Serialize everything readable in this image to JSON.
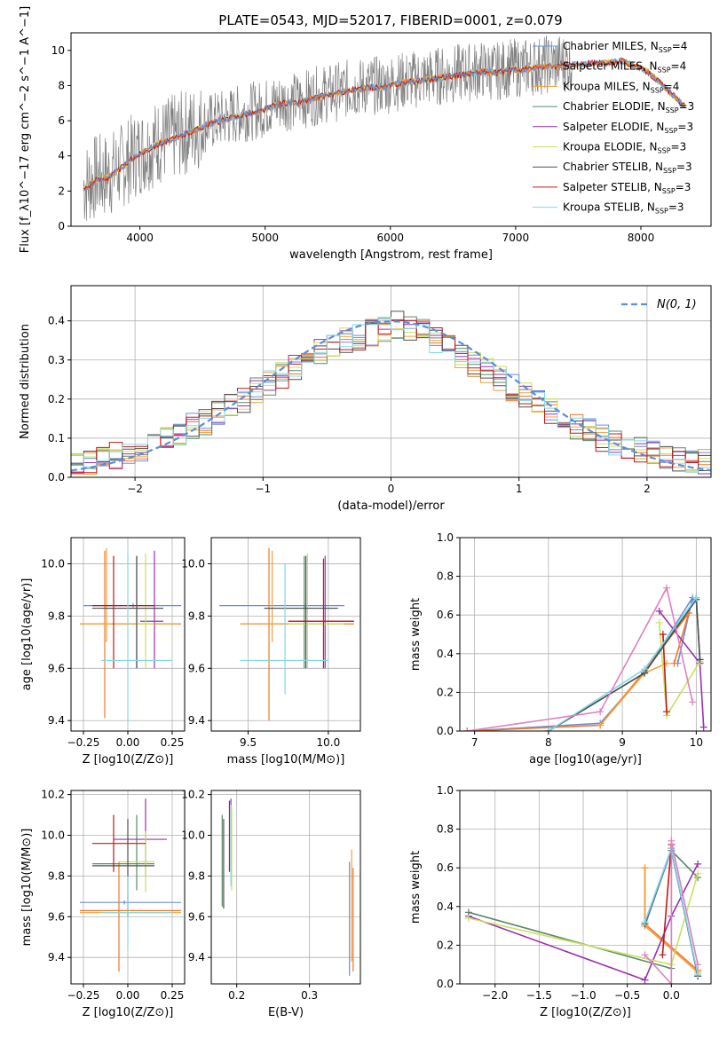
{
  "figure": {
    "title": "PLATE=0543, MJD=52017, FIBERID=0001, z=0.079"
  },
  "series_colors": [
    "#6a8fd8",
    "#f07828",
    "#f0a040",
    "#5a8a6a",
    "#9a30b0",
    "#c8e060",
    "#505050",
    "#c01818",
    "#80d8e8"
  ],
  "normal_curve_color": "#5b8fd8",
  "chart_data": [
    {
      "id": "spectrum",
      "type": "line",
      "xlabel": "wavelength [Angstrom, rest frame]",
      "ylabel": "Flux [f_λ10^−17 erg cm^−2 s^−1 A^−1]",
      "xlim": [
        3450,
        8560
      ],
      "ylim": [
        0,
        11
      ],
      "xticks": [
        4000,
        5000,
        6000,
        7000,
        8000
      ],
      "yticks": [
        0,
        2,
        4,
        6,
        8,
        10
      ],
      "grid": false,
      "legend_position": "top-right",
      "observed": {
        "x": [
          3550,
          3650,
          3750,
          3850,
          3950,
          4050,
          4150,
          4250,
          4350,
          4450,
          4550,
          4650,
          4750,
          4850,
          4950,
          5050,
          5150,
          5250,
          5350,
          5450,
          5550,
          5650,
          5750,
          5850,
          5950,
          6050,
          6150,
          6250,
          6350,
          6450,
          6550,
          6650,
          6750,
          6850,
          6950,
          7050,
          7150,
          7250,
          7350,
          7450
        ],
        "y": [
          2.3,
          2.8,
          2.9,
          3.4,
          4.0,
          4.4,
          4.8,
          5.0,
          5.3,
          5.6,
          5.9,
          6.1,
          6.3,
          6.5,
          6.6,
          6.9,
          7.1,
          7.1,
          7.3,
          7.5,
          7.6,
          7.8,
          7.9,
          8.0,
          8.0,
          8.2,
          8.3,
          8.4,
          8.5,
          8.6,
          8.7,
          8.8,
          8.9,
          8.8,
          9.0,
          9.0,
          9.1,
          9.2,
          9.3,
          9.3
        ]
      },
      "model": {
        "x": [
          3550,
          3650,
          3750,
          3850,
          3950,
          4050,
          4150,
          4250,
          4350,
          4450,
          4550,
          4650,
          4750,
          4850,
          4950,
          5050,
          5150,
          5250,
          5350,
          5450,
          5550,
          5650,
          5750,
          5850,
          5950,
          6050,
          6150,
          6250,
          6350,
          6450,
          6550,
          6650,
          6750,
          6850,
          6950,
          7050,
          7150,
          7250,
          7350,
          7450,
          7550,
          7650,
          7750,
          7850,
          7950,
          8050,
          8150,
          8250,
          8350
        ],
        "y": [
          2.1,
          2.6,
          2.8,
          3.3,
          3.9,
          4.3,
          4.7,
          4.9,
          5.2,
          5.5,
          5.8,
          6.0,
          6.2,
          6.4,
          6.5,
          6.8,
          7.0,
          7.0,
          7.2,
          7.4,
          7.5,
          7.7,
          7.8,
          7.9,
          7.9,
          8.1,
          8.2,
          8.3,
          8.4,
          8.5,
          8.6,
          8.7,
          8.8,
          8.7,
          8.9,
          8.9,
          9.0,
          9.1,
          9.1,
          9.2,
          9.2,
          9.3,
          9.3,
          9.4,
          9.1,
          8.8,
          8.2,
          7.5,
          6.8
        ]
      },
      "legend": [
        {
          "label": "Chabrier MILES, N",
          "sub": "SSP",
          "suffix": "=4"
        },
        {
          "label": "Salpeter MILES, N",
          "sub": "SSP",
          "suffix": "=4"
        },
        {
          "label": "Kroupa MILES, N",
          "sub": "SSP",
          "suffix": "=4"
        },
        {
          "label": "Chabrier ELODIE, N",
          "sub": "SSP",
          "suffix": "=3"
        },
        {
          "label": "Salpeter ELODIE, N",
          "sub": "SSP",
          "suffix": "=3"
        },
        {
          "label": "Kroupa ELODIE, N",
          "sub": "SSP",
          "suffix": "=3"
        },
        {
          "label": "Chabrier STELIB, N",
          "sub": "SSP",
          "suffix": "=3"
        },
        {
          "label": "Salpeter STELIB, N",
          "sub": "SSP",
          "suffix": "=3"
        },
        {
          "label": "Kroupa STELIB, N",
          "sub": "SSP",
          "suffix": "=3"
        }
      ]
    },
    {
      "id": "residuals",
      "type": "line",
      "xlabel": "(data-model)/error",
      "ylabel": "Normed distribution",
      "xlim": [
        -2.5,
        2.5
      ],
      "ylim": [
        0,
        0.49
      ],
      "xticks": [
        -2,
        -1,
        0,
        1,
        2
      ],
      "yticks": [
        0.0,
        0.1,
        0.2,
        0.3,
        0.4
      ],
      "grid": true,
      "legend_position": "top-right",
      "normal_label": "N(0, 1)",
      "bin_width": 0.1,
      "bins_x": [
        -2.5,
        -2.4,
        -2.3,
        -2.2,
        -2.1,
        -2.0,
        -1.9,
        -1.8,
        -1.7,
        -1.6,
        -1.5,
        -1.4,
        -1.3,
        -1.2,
        -1.1,
        -1.0,
        -0.9,
        -0.8,
        -0.7,
        -0.6,
        -0.5,
        -0.4,
        -0.3,
        -0.2,
        -0.1,
        0.0,
        0.1,
        0.2,
        0.3,
        0.4,
        0.5,
        0.6,
        0.7,
        0.8,
        0.9,
        1.0,
        1.1,
        1.2,
        1.3,
        1.4,
        1.5,
        1.6,
        1.7,
        1.8,
        1.9,
        2.0,
        2.1,
        2.2,
        2.3,
        2.4
      ],
      "hist_base": [
        0.035,
        0.04,
        0.05,
        0.055,
        0.06,
        0.075,
        0.09,
        0.1,
        0.11,
        0.13,
        0.14,
        0.16,
        0.18,
        0.2,
        0.22,
        0.24,
        0.26,
        0.28,
        0.3,
        0.32,
        0.34,
        0.35,
        0.36,
        0.37,
        0.38,
        0.39,
        0.38,
        0.37,
        0.35,
        0.33,
        0.31,
        0.29,
        0.27,
        0.25,
        0.23,
        0.21,
        0.19,
        0.17,
        0.15,
        0.13,
        0.12,
        0.1,
        0.09,
        0.08,
        0.07,
        0.06,
        0.055,
        0.05,
        0.045,
        0.04
      ]
    },
    {
      "id": "age_vs_Z",
      "type": "scatter",
      "xlabel": "Z [log10(Z/Z⊙)]",
      "ylabel": "age  [log10(age/yr)]",
      "xlim": [
        -0.32,
        0.32
      ],
      "ylim": [
        9.36,
        10.1
      ],
      "xticks": [
        -0.25,
        0.0,
        0.25
      ],
      "xticklabels": [
        "−0.25",
        "0.00",
        "0.25"
      ],
      "yticks": [
        9.4,
        9.6,
        9.8,
        10.0
      ],
      "grid": true,
      "points": [
        {
          "x": 0.03,
          "y": 9.84,
          "xlo": -0.25,
          "xhi": 0.3,
          "ylo": 9.83,
          "yhi": 9.85
        },
        {
          "x": -0.13,
          "y": 9.77,
          "xlo": -0.27,
          "xhi": 0.3,
          "ylo": 9.41,
          "yhi": 10.05
        },
        {
          "x": -0.12,
          "y": 9.77,
          "xlo": -0.27,
          "xhi": 0.28,
          "ylo": 9.7,
          "yhi": 10.06
        },
        {
          "x": 0.05,
          "y": 9.83,
          "xlo": -0.15,
          "xhi": 0.2,
          "ylo": 9.6,
          "yhi": 10.03
        },
        {
          "x": 0.15,
          "y": 9.78,
          "xlo": 0.07,
          "xhi": 0.2,
          "ylo": 9.6,
          "yhi": 10.05
        },
        {
          "x": 0.1,
          "y": 9.77,
          "xlo": 0.05,
          "xhi": 0.15,
          "ylo": 9.6,
          "yhi": 10.04
        },
        {
          "x": 0.05,
          "y": 9.83,
          "xlo": -0.2,
          "xhi": 0.2,
          "ylo": 9.6,
          "yhi": 10.03
        },
        {
          "x": -0.08,
          "y": 9.84,
          "xlo": -0.2,
          "xhi": 0.15,
          "ylo": 9.6,
          "yhi": 10.03
        },
        {
          "x": 0.0,
          "y": 9.63,
          "xlo": -0.15,
          "xhi": 0.25,
          "ylo": 9.39,
          "yhi": 10.05
        }
      ]
    },
    {
      "id": "age_vs_mass",
      "type": "scatter",
      "xlabel": "mass [log10(M/M⊙)]",
      "ylabel": "",
      "xlim": [
        9.27,
        10.2
      ],
      "ylim": [
        9.36,
        10.1
      ],
      "xticks": [
        9.5,
        10.0
      ],
      "xticklabels": [
        "9.5",
        "10.0"
      ],
      "yticks": [
        9.4,
        9.6,
        9.8,
        10.0
      ],
      "grid": true,
      "points": [
        {
          "x": 9.85,
          "y": 9.84,
          "xlo": 9.32,
          "xhi": 10.1,
          "ylo": 9.83,
          "yhi": 9.85
        },
        {
          "x": 9.63,
          "y": 9.77,
          "xlo": 9.45,
          "xhi": 10.16,
          "ylo": 9.4,
          "yhi": 10.06
        },
        {
          "x": 9.65,
          "y": 9.77,
          "xlo": 9.45,
          "xhi": 10.1,
          "ylo": 9.7,
          "yhi": 10.05
        },
        {
          "x": 9.85,
          "y": 9.83,
          "xlo": 9.6,
          "xhi": 10.05,
          "ylo": 9.6,
          "yhi": 10.03
        },
        {
          "x": 9.98,
          "y": 9.78,
          "xlo": 9.75,
          "xhi": 10.16,
          "ylo": 9.6,
          "yhi": 10.03
        },
        {
          "x": 9.87,
          "y": 9.77,
          "xlo": 9.75,
          "xhi": 10.1,
          "ylo": 9.6,
          "yhi": 10.04
        },
        {
          "x": 9.86,
          "y": 9.83,
          "xlo": 9.6,
          "xhi": 10.06,
          "ylo": 9.6,
          "yhi": 10.03
        },
        {
          "x": 9.97,
          "y": 9.78,
          "xlo": 9.75,
          "xhi": 10.16,
          "ylo": 9.6,
          "yhi": 10.02
        },
        {
          "x": 9.73,
          "y": 9.63,
          "xlo": 9.45,
          "xhi": 10.0,
          "ylo": 9.5,
          "yhi": 10.0
        }
      ]
    },
    {
      "id": "massweight_vs_age",
      "type": "line",
      "xlabel": "age  [log10(age/yr)]",
      "ylabel": "mass weight",
      "xlim": [
        6.8,
        10.2
      ],
      "ylim": [
        0,
        1.0
      ],
      "xticks": [
        7,
        8,
        9,
        10
      ],
      "yticks": [
        0.0,
        0.2,
        0.4,
        0.6,
        0.8,
        1.0
      ],
      "grid": true,
      "series": [
        {
          "x": [
            6.9,
            8.7,
            9.3,
            9.95,
            9.75
          ],
          "y": [
            0.0,
            0.04,
            0.3,
            0.69,
            0.35
          ]
        },
        {
          "x": [
            6.9,
            8.7,
            9.3,
            9.9,
            9.7
          ],
          "y": [
            0.0,
            0.03,
            0.31,
            0.61,
            0.35
          ]
        },
        {
          "x": [
            8.7,
            9.3,
            9.6
          ],
          "y": [
            0.03,
            0.3,
            0.35
          ]
        },
        {
          "x": [
            8.0,
            9.3,
            10.0,
            10.05
          ],
          "y": [
            0.0,
            0.3,
            0.69,
            0.36
          ]
        },
        {
          "x": [
            9.5,
            10.05,
            10.1
          ],
          "y": [
            0.62,
            0.35,
            0.02
          ]
        },
        {
          "x": [
            9.5,
            9.6,
            10.05
          ],
          "y": [
            0.56,
            0.08,
            0.36
          ]
        },
        {
          "x": [
            8.0,
            9.3,
            10.0,
            10.05
          ],
          "y": [
            0.0,
            0.3,
            0.68,
            0.37
          ]
        },
        {
          "x": [
            9.55,
            9.6
          ],
          "y": [
            0.5,
            0.1
          ]
        },
        {
          "x": [
            8.0,
            9.3,
            10.0
          ],
          "y": [
            0.0,
            0.32,
            0.69
          ]
        },
        {
          "x": [
            6.9,
            8.7,
            9.6,
            9.95
          ],
          "y": [
            0.0,
            0.1,
            0.74,
            0.15
          ]
        }
      ]
    },
    {
      "id": "mass_vs_Z",
      "type": "scatter",
      "xlabel": "Z [log10(Z/Z⊙)]",
      "ylabel": "mass [log10(M/M⊙)]",
      "xlim": [
        -0.32,
        0.32
      ],
      "ylim": [
        9.27,
        10.22
      ],
      "xticks": [
        -0.25,
        0.0,
        0.25
      ],
      "xticklabels": [
        "−0.25",
        "0.00",
        "0.25"
      ],
      "yticks": [
        9.4,
        9.6,
        9.8,
        10.0,
        10.2
      ],
      "grid": true,
      "points": [
        {
          "x": -0.02,
          "y": 9.67,
          "xlo": -0.27,
          "xhi": 0.3,
          "ylo": 9.66,
          "yhi": 9.68
        },
        {
          "x": -0.05,
          "y": 9.63,
          "xlo": -0.27,
          "xhi": 0.3,
          "ylo": 9.33,
          "yhi": 9.87
        },
        {
          "x": 0.0,
          "y": 9.62,
          "xlo": -0.27,
          "xhi": 0.3,
          "ylo": 9.6,
          "yhi": 9.64
        },
        {
          "x": 0.05,
          "y": 9.86,
          "xlo": -0.2,
          "xhi": 0.15,
          "ylo": 9.73,
          "yhi": 10.1
        },
        {
          "x": 0.1,
          "y": 9.98,
          "xlo": -0.08,
          "xhi": 0.22,
          "ylo": 9.8,
          "yhi": 10.18
        },
        {
          "x": 0.1,
          "y": 9.87,
          "xlo": -0.05,
          "xhi": 0.15,
          "ylo": 9.72,
          "yhi": 10.02
        },
        {
          "x": 0.0,
          "y": 9.85,
          "xlo": -0.2,
          "xhi": 0.15,
          "ylo": 9.6,
          "yhi": 10.08
        },
        {
          "x": -0.08,
          "y": 9.96,
          "xlo": -0.2,
          "xhi": 0.1,
          "ylo": 9.82,
          "yhi": 10.1
        },
        {
          "x": 0.0,
          "y": 9.62,
          "xlo": -0.15,
          "xhi": 0.25,
          "ylo": 9.44,
          "yhi": 9.8
        }
      ]
    },
    {
      "id": "mass_vs_EBV",
      "type": "scatter",
      "xlabel": "E(B-V)",
      "ylabel": "",
      "xlim": [
        0.165,
        0.37
      ],
      "ylim": [
        9.27,
        10.22
      ],
      "xticks": [
        0.2,
        0.3
      ],
      "xticklabels": [
        "0.2",
        "0.3"
      ],
      "yticks": [
        9.4,
        9.6,
        9.8,
        10.0,
        10.2
      ],
      "grid": true,
      "points": [
        {
          "x": 0.355,
          "y": 9.67,
          "ylo": 9.31,
          "yhi": 9.87
        },
        {
          "x": 0.36,
          "y": 9.63,
          "ylo": 9.33,
          "yhi": 9.84
        },
        {
          "x": 0.358,
          "y": 9.62,
          "ylo": 9.38,
          "yhi": 9.93
        },
        {
          "x": 0.18,
          "y": 9.86,
          "ylo": 9.65,
          "yhi": 10.1
        },
        {
          "x": 0.192,
          "y": 9.98,
          "ylo": 9.77,
          "yhi": 10.18
        },
        {
          "x": 0.193,
          "y": 9.87,
          "ylo": 9.73,
          "yhi": 10.14
        },
        {
          "x": 0.182,
          "y": 9.85,
          "ylo": 9.64,
          "yhi": 10.08
        },
        {
          "x": 0.19,
          "y": 9.96,
          "ylo": 9.82,
          "yhi": 10.17
        },
        {
          "x": 0.192,
          "y": 9.9,
          "ylo": 9.75,
          "yhi": 10.15
        }
      ]
    },
    {
      "id": "massweight_vs_Z",
      "type": "line",
      "xlabel": "Z [log10(Z/Z⊙)]",
      "ylabel": "mass weight",
      "xlim": [
        -2.4,
        0.45
      ],
      "ylim": [
        0,
        1.0
      ],
      "xticks": [
        -2.0,
        -1.5,
        -1.0,
        -0.5,
        0.0
      ],
      "xticklabels": [
        "−2.0",
        "−1.5",
        "−1.0",
        "−0.5",
        "0.0"
      ],
      "yticks": [
        0.0,
        0.2,
        0.4,
        0.6,
        0.8,
        1.0
      ],
      "grid": true,
      "series": [
        {
          "x": [
            -0.3,
            0.0,
            0.3
          ],
          "y": [
            0.3,
            0.69,
            0.04
          ]
        },
        {
          "x": [
            -0.3,
            -0.3,
            0.3
          ],
          "y": [
            0.6,
            0.31,
            0.07
          ]
        },
        {
          "x": [
            -0.3,
            -0.3,
            0.3
          ],
          "y": [
            0.6,
            0.3,
            0.06
          ]
        },
        {
          "x": [
            -2.3,
            0.0,
            0.0,
            0.3
          ],
          "y": [
            0.37,
            0.08,
            0.69,
            0.55
          ]
        },
        {
          "x": [
            -2.3,
            -0.3,
            0.0,
            0.3
          ],
          "y": [
            0.35,
            0.02,
            0.35,
            0.62
          ]
        },
        {
          "x": [
            -2.3,
            0.0,
            0.3
          ],
          "y": [
            0.34,
            0.1,
            0.57
          ]
        },
        {
          "x": [
            -0.3,
            0.0,
            0.3
          ],
          "y": [
            0.31,
            0.7,
            0.04
          ]
        },
        {
          "x": [
            -0.1,
            0.0
          ],
          "y": [
            0.15,
            0.72
          ]
        },
        {
          "x": [
            -0.3,
            0.0,
            0.3
          ],
          "y": [
            0.32,
            0.7,
            0.05
          ]
        },
        {
          "x": [
            -0.3,
            0.0,
            0.0,
            0.3
          ],
          "y": [
            0.15,
            0.0,
            0.74,
            0.1
          ]
        }
      ]
    }
  ]
}
